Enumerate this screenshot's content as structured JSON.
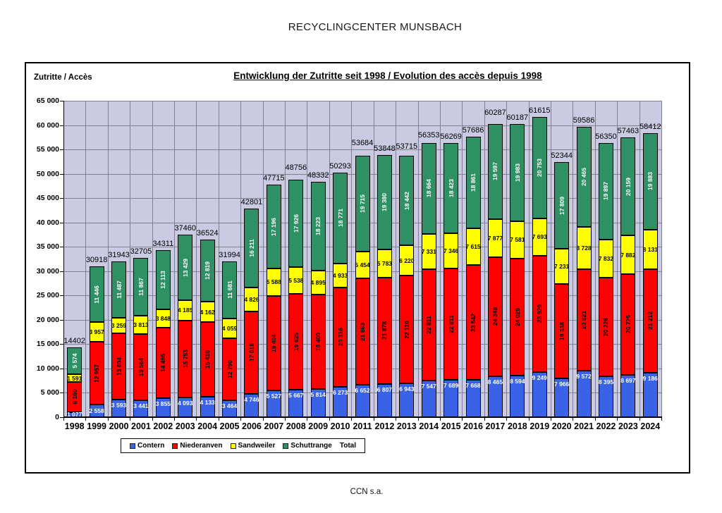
{
  "header": {
    "title": "RECYCLINGCENTER MUNSBACH"
  },
  "footer": {
    "text": "CCN s.a."
  },
  "chart_data": {
    "type": "bar",
    "stacked": true,
    "title": "Entwicklung der Zutritte seit 1998 / Evolution des accès depuis 1998",
    "ylabel": "Zutritte / Accès",
    "xlabel": "",
    "categories": [
      "1998",
      "1999",
      "2000",
      "2001",
      "2002",
      "2003",
      "2004",
      "2005",
      "2006",
      "2007",
      "2008",
      "2009",
      "2010",
      "2011",
      "2012",
      "2013",
      "2014",
      "2015",
      "2016",
      "2017",
      "2018",
      "2019",
      "2020",
      "2021",
      "2022",
      "2023",
      "2024"
    ],
    "series": [
      {
        "name": "Contern",
        "color": "#3A62E6",
        "label_color": "#ffffff",
        "label_orientation": "horizontal",
        "values": [
          1077,
          2558,
          3593,
          3441,
          3855,
          4093,
          4133,
          3464,
          4746,
          5527,
          5667,
          5814,
          6273,
          6652,
          6807,
          6943,
          7547,
          7689,
          7668,
          8465,
          8594,
          9249,
          7966,
          9572,
          8395,
          8697,
          9186
        ]
      },
      {
        "name": "Niederanven",
        "color": "#FF0000",
        "label_color": "#000000",
        "label_orientation": "vertical",
        "values": [
          6160,
          12957,
          13604,
          13584,
          14495,
          15753,
          15410,
          12790,
          17018,
          19404,
          19625,
          19400,
          20316,
          21863,
          21878,
          22110,
          22811,
          22811,
          23542,
          24348,
          24029,
          23920,
          19338,
          20821,
          20226,
          20725,
          21212
        ]
      },
      {
        "name": "Sandweiler",
        "color": "#FFFF00",
        "label_color": "#000000",
        "label_orientation": "horizontal",
        "values": [
          1591,
          3957,
          3259,
          3813,
          3848,
          4185,
          4162,
          4059,
          4826,
          5588,
          5538,
          4895,
          4933,
          5454,
          5783,
          6220,
          7331,
          7346,
          7615,
          7877,
          7581,
          7693,
          7231,
          8728,
          7832,
          7882,
          8131
        ]
      },
      {
        "name": "Schuttrange",
        "color": "#2F9063",
        "label_color": "#ffffff",
        "label_orientation": "vertical",
        "values": [
          5574,
          11446,
          11487,
          11867,
          12113,
          13429,
          12819,
          11681,
          16211,
          17196,
          17926,
          18223,
          18771,
          19715,
          19380,
          18442,
          18664,
          18423,
          18861,
          19597,
          19983,
          20753,
          17809,
          20465,
          19897,
          20159,
          19883
        ]
      }
    ],
    "totals": [
      14402,
      30918,
      31943,
      32705,
      34311,
      37460,
      36524,
      31994,
      42801,
      47715,
      48756,
      48332,
      50293,
      53684,
      53848,
      53715,
      56353,
      56269,
      57686,
      60287,
      60187,
      61615,
      52344,
      59586,
      56350,
      57463,
      58412
    ],
    "legend_entries": [
      "Contern",
      "Niederanven",
      "Sandweiler",
      "Schuttrange",
      "Total"
    ],
    "legend_position": "bottom",
    "ylim": [
      0,
      65000
    ],
    "ytick_step": 5000,
    "y_tick_labels": [
      "0",
      "5 000",
      "10 000",
      "15 000",
      "20 000",
      "25 000",
      "30 000",
      "35 000",
      "40 000",
      "45 000",
      "50 000",
      "55 000",
      "60 000",
      "65 000"
    ],
    "grid": true,
    "plot_bg_color": "#CACAE2",
    "grid_color": "#80808F",
    "layout": {
      "total_label_raise": {
        "2008": 8,
        "2011": 9,
        "2013": 4,
        "2014": 2,
        "2017": 7
      }
    }
  }
}
